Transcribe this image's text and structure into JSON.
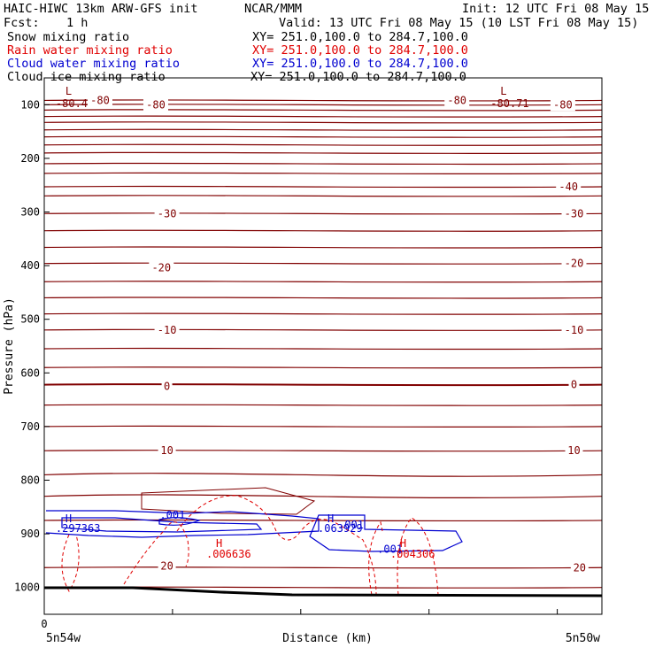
{
  "header": {
    "title_left": "HAIC-HIWC 13km ARW-GFS init",
    "title_center": "NCAR/MMM",
    "init": "Init: 12 UTC Fri 08 May 15",
    "fcst_label": "Fcst:",
    "fcst_value": "1 h",
    "valid": "Valid: 13 UTC Fri 08 May 15 (10 LST Fri 08 May 15)"
  },
  "legend": [
    {
      "name": "Snow mixing ratio",
      "xy": "XY= 251.0,100.0 to 284.7,100.0",
      "color": "#000000"
    },
    {
      "name": "Rain water mixing ratio",
      "xy": "XY= 251.0,100.0 to 284.7,100.0",
      "color": "#e00000"
    },
    {
      "name": "Cloud water mixing ratio",
      "xy": "XY= 251.0,100.0 to 284.7,100.0",
      "color": "#0000d0"
    },
    {
      "name": "Cloud ice mixing ratio",
      "xy": "XY= 251.0,100.0 to 284.7,100.0",
      "color": "#000000"
    }
  ],
  "chart_data": {
    "type": "line",
    "xlabel": "Distance (km)",
    "ylabel": "Pressure (hPa)",
    "xlim": [
      0,
      100
    ],
    "ylim": [
      1050,
      50
    ],
    "y_ticks": [
      100,
      200,
      300,
      400,
      500,
      600,
      700,
      800,
      900,
      1000
    ],
    "x_tick_labels": {
      "origin": "0",
      "left": "5n54w",
      "right": "5n50w"
    },
    "temperature_labels": [
      {
        "text": "-80",
        "x": 10,
        "p": 92
      },
      {
        "text": "-80",
        "x": 20,
        "p": 100
      },
      {
        "text": "-80",
        "x": 74,
        "p": 92
      },
      {
        "text": "-80",
        "x": 93,
        "p": 100
      },
      {
        "text": "-40",
        "x": 94,
        "p": 253
      },
      {
        "text": "-30",
        "x": 22,
        "p": 303
      },
      {
        "text": "-30",
        "x": 95,
        "p": 303
      },
      {
        "text": "-20",
        "x": 21,
        "p": 404
      },
      {
        "text": "-20",
        "x": 95,
        "p": 396
      },
      {
        "text": "-10",
        "x": 22,
        "p": 520
      },
      {
        "text": "-10",
        "x": 95,
        "p": 520
      },
      {
        "text": "0",
        "x": 22,
        "p": 625
      },
      {
        "text": "0",
        "x": 95,
        "p": 622
      },
      {
        "text": "10",
        "x": 22,
        "p": 745
      },
      {
        "text": "10",
        "x": 95,
        "p": 745
      },
      {
        "text": "20",
        "x": 22,
        "p": 960
      },
      {
        "text": "20",
        "x": 96,
        "p": 963
      }
    ],
    "extrema": [
      {
        "symbol": "L",
        "value": "-80.4",
        "x": 3,
        "color": "#800000",
        "row": "top"
      },
      {
        "symbol": "L",
        "value": "-80.71",
        "x": 81,
        "color": "#800000",
        "row": "top"
      },
      {
        "symbol": "H",
        "value": ".297363",
        "x": 3,
        "color": "#0000d0",
        "row": "cw"
      },
      {
        "symbol": "H",
        "value": ".063929",
        "x": 50,
        "color": "#0000d0",
        "row": "cw"
      },
      {
        "symbol": "H",
        "value": ".006636",
        "x": 30,
        "color": "#e00000",
        "row": "rw"
      },
      {
        "symbol": "H",
        "value": ".004306",
        "x": 63,
        "color": "#e00000",
        "row": "rw"
      }
    ],
    "contour_labels": [
      {
        "text": ".001",
        "x": 23,
        "p": 872,
        "color": "#0000d0"
      },
      {
        "text": ".001",
        "x": 55,
        "p": 890,
        "color": "#0000d0"
      },
      {
        "text": ".001",
        "x": 62,
        "p": 935,
        "color": "#0000d0"
      }
    ],
    "temperature_isotherm_pressures": [
      92,
      100,
      110,
      122,
      133,
      147,
      160,
      175,
      190,
      210,
      228,
      253,
      270,
      303,
      335,
      366,
      396,
      430,
      460,
      490,
      520,
      555,
      590,
      622,
      660,
      700,
      745,
      790,
      830,
      875,
      963,
      1000
    ]
  }
}
